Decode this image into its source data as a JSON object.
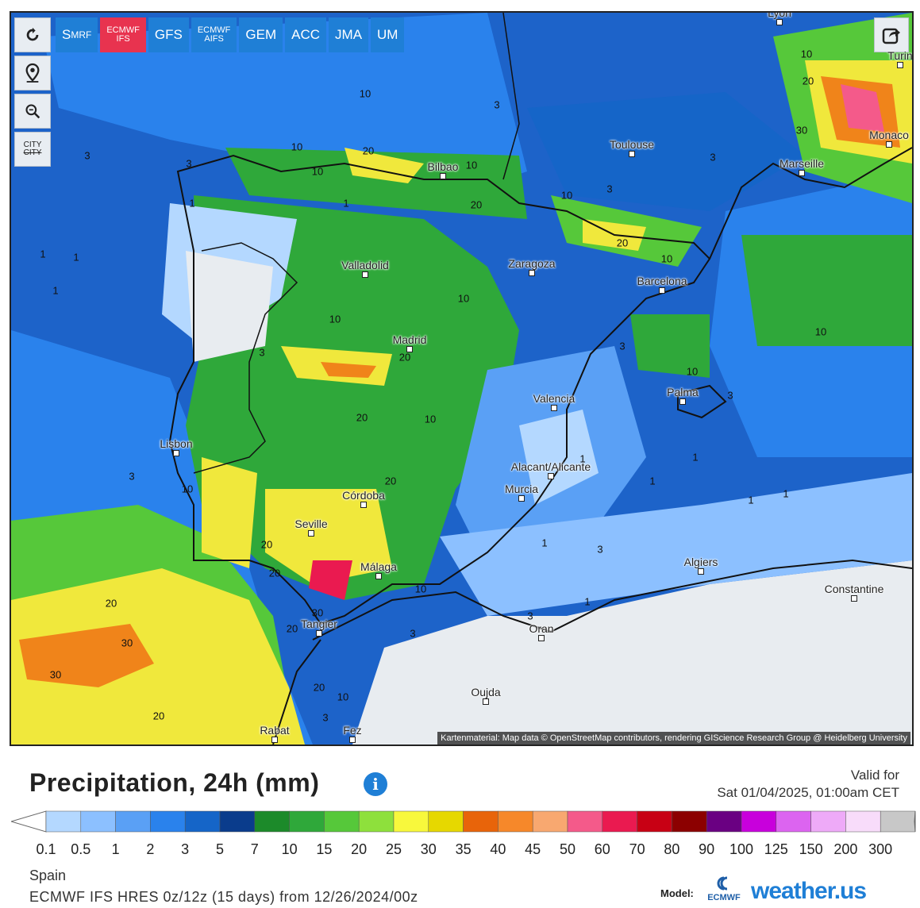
{
  "toolbar": {
    "reload_icon": "reload-icon",
    "marker_icon": "map-marker-icon",
    "zoom_icon": "zoom-icon",
    "city_label_top": "CITY",
    "city_label_bottom": "CITY",
    "share_icon": "share-icon"
  },
  "model_tabs": [
    {
      "main": "S",
      "sub": "MRF",
      "active": false
    },
    {
      "line1": "ECMWF",
      "line2": "IFS",
      "active": true
    },
    {
      "label": "GFS",
      "active": false
    },
    {
      "line1": "ECMWF",
      "line2": "AIFS",
      "active": false
    },
    {
      "label": "GEM",
      "active": false
    },
    {
      "label": "ACC",
      "active": false
    },
    {
      "label": "JMA",
      "active": false
    },
    {
      "label": "UM",
      "active": false
    }
  ],
  "map": {
    "attribution": "Kartenmaterial: Map data © OpenStreetMap contributors, rendering GIScience Research Group @ Heidelberg University",
    "cities": [
      "Lyon",
      "Turin",
      "Monaco",
      "Toulouse",
      "Marseille",
      "Bilbao",
      "Valladolid",
      "Zaragoza",
      "Barcelona",
      "Madrid",
      "Palma",
      "Valencia",
      "Lisbon",
      "Alacant/Alicante",
      "Murcia",
      "Córdoba",
      "Seville",
      "Málaga",
      "Algiers",
      "Constantine",
      "Tangier",
      "Oran",
      "Oujda",
      "Rabat",
      "Fez"
    ],
    "contour_labels": [
      "10",
      "20",
      "3",
      "30",
      "1"
    ]
  },
  "header": {
    "title": "Precipitation, 24h (mm)",
    "valid_label": "Valid for",
    "valid_time": "Sat 01/04/2025, 01:00am CET"
  },
  "legend": {
    "labels": [
      "0.1",
      "0.5",
      "1",
      "2",
      "3",
      "5",
      "7",
      "10",
      "15",
      "20",
      "25",
      "30",
      "35",
      "40",
      "45",
      "50",
      "60",
      "70",
      "80",
      "90",
      "100",
      "125",
      "150",
      "200",
      "300"
    ],
    "colors": [
      "#b4d8ff",
      "#8cc0ff",
      "#5aa0f5",
      "#2a82ec",
      "#1565c8",
      "#0a3c8c",
      "#1c8a2a",
      "#2fa83a",
      "#56c83a",
      "#8ee03c",
      "#f8f83c",
      "#e6d800",
      "#e8640a",
      "#f6882a",
      "#f8a870",
      "#f45a8a",
      "#ea1a50",
      "#c80014",
      "#8c0000",
      "#6a0082",
      "#c800dc",
      "#dc64f0",
      "#eeaaf8",
      "#f8dcfa",
      "#c8c8c8"
    ]
  },
  "footer": {
    "region": "Spain",
    "run": "ECMWF IFS HRES 0z/12z (15 days) from 12/26/2024/00z",
    "model_label": "Model:",
    "ecmwf_label": "ECMWF",
    "brand": "weather.us"
  }
}
